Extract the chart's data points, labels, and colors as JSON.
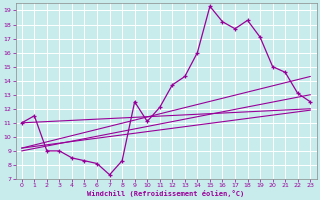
{
  "xlabel": "Windchill (Refroidissement éolien,°C)",
  "xlim": [
    -0.5,
    23.5
  ],
  "ylim": [
    7,
    19.5
  ],
  "xticks": [
    0,
    1,
    2,
    3,
    4,
    5,
    6,
    7,
    8,
    9,
    10,
    11,
    12,
    13,
    14,
    15,
    16,
    17,
    18,
    19,
    20,
    21,
    22,
    23
  ],
  "yticks": [
    7,
    8,
    9,
    10,
    11,
    12,
    13,
    14,
    15,
    16,
    17,
    18,
    19
  ],
  "bg_color": "#c8ecec",
  "line_color": "#990099",
  "grid_color": "#b0d8d8",
  "main_curve_x": [
    0,
    1,
    2,
    3,
    4,
    5,
    6,
    7,
    8,
    9,
    10,
    11,
    12,
    13,
    14,
    15,
    16,
    17,
    18,
    19,
    20,
    21,
    22,
    23
  ],
  "main_curve_y": [
    11.0,
    11.5,
    9.0,
    9.0,
    8.5,
    8.3,
    8.1,
    7.3,
    8.3,
    12.5,
    11.1,
    12.1,
    13.7,
    14.3,
    16.0,
    19.3,
    18.2,
    17.7,
    18.3,
    17.1,
    15.0,
    14.6,
    13.1,
    12.5
  ],
  "line1_x": [
    0,
    23
  ],
  "line1_y": [
    9.0,
    13.0
  ],
  "line2_x": [
    0,
    23
  ],
  "line2_y": [
    9.2,
    11.9
  ],
  "line3_x": [
    0,
    23
  ],
  "line3_y": [
    9.2,
    14.3
  ],
  "line4_x": [
    0,
    23
  ],
  "line4_y": [
    11.0,
    12.0
  ]
}
